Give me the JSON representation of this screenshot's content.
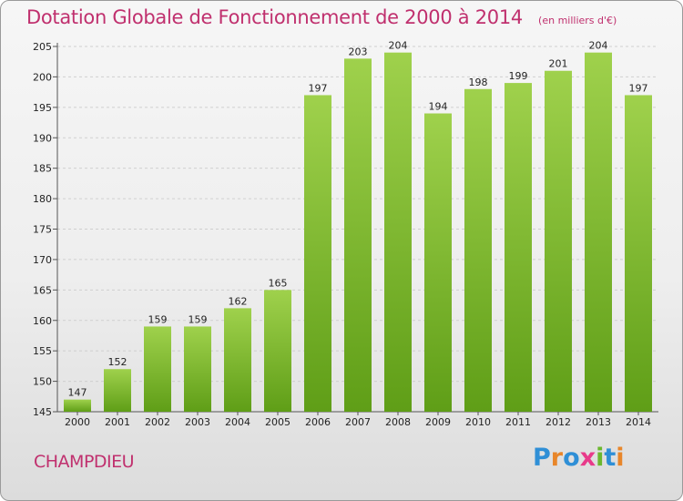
{
  "chart_data": {
    "type": "bar",
    "title": "Dotation Globale de Fonctionnement de 2000 à 2014",
    "subtitle": "(en milliers d'€)",
    "categories": [
      "2000",
      "2001",
      "2002",
      "2003",
      "2004",
      "2005",
      "2006",
      "2007",
      "2008",
      "2009",
      "2010",
      "2011",
      "2012",
      "2013",
      "2014"
    ],
    "values": [
      147,
      152,
      159,
      159,
      162,
      165,
      197,
      203,
      204,
      194,
      198,
      199,
      201,
      204,
      197
    ],
    "ylim": [
      145,
      205
    ],
    "yticks": [
      145,
      150,
      155,
      160,
      165,
      170,
      175,
      180,
      185,
      190,
      195,
      200,
      205
    ],
    "grid": true,
    "xlabel": "",
    "ylabel": "",
    "colors": {
      "bar_top": "#9fd14c",
      "bar_bottom": "#5f9e17",
      "title": "#c0306e"
    }
  },
  "footer": {
    "commune": "CHAMPDIEU",
    "logo_text": "Proxiti",
    "logo_colors": [
      "#2f8fd6",
      "#e8862a",
      "#2f8fd6",
      "#e83a8a",
      "#6bb82e",
      "#2f8fd6",
      "#e8862a"
    ]
  }
}
